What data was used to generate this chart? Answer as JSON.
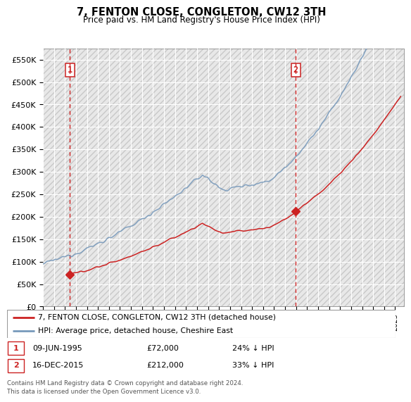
{
  "title": "7, FENTON CLOSE, CONGLETON, CW12 3TH",
  "subtitle": "Price paid vs. HM Land Registry's House Price Index (HPI)",
  "ylim": [
    0,
    575000
  ],
  "xlim_start": 1993.0,
  "xlim_end": 2025.8,
  "sale1_date": 1995.44,
  "sale1_price": 72000,
  "sale2_date": 2015.96,
  "sale2_price": 212000,
  "legend_line1": "7, FENTON CLOSE, CONGLETON, CW12 3TH (detached house)",
  "legend_line2": "HPI: Average price, detached house, Cheshire East",
  "footer": "Contains HM Land Registry data © Crown copyright and database right 2024.\nThis data is licensed under the Open Government Licence v3.0.",
  "hpi_color": "#7799bb",
  "price_color": "#cc2222",
  "vline_color": "#cc2222",
  "bg_color": "#ffffff",
  "plot_bg_color": "#e8e8e8",
  "grid_color": "#ffffff"
}
